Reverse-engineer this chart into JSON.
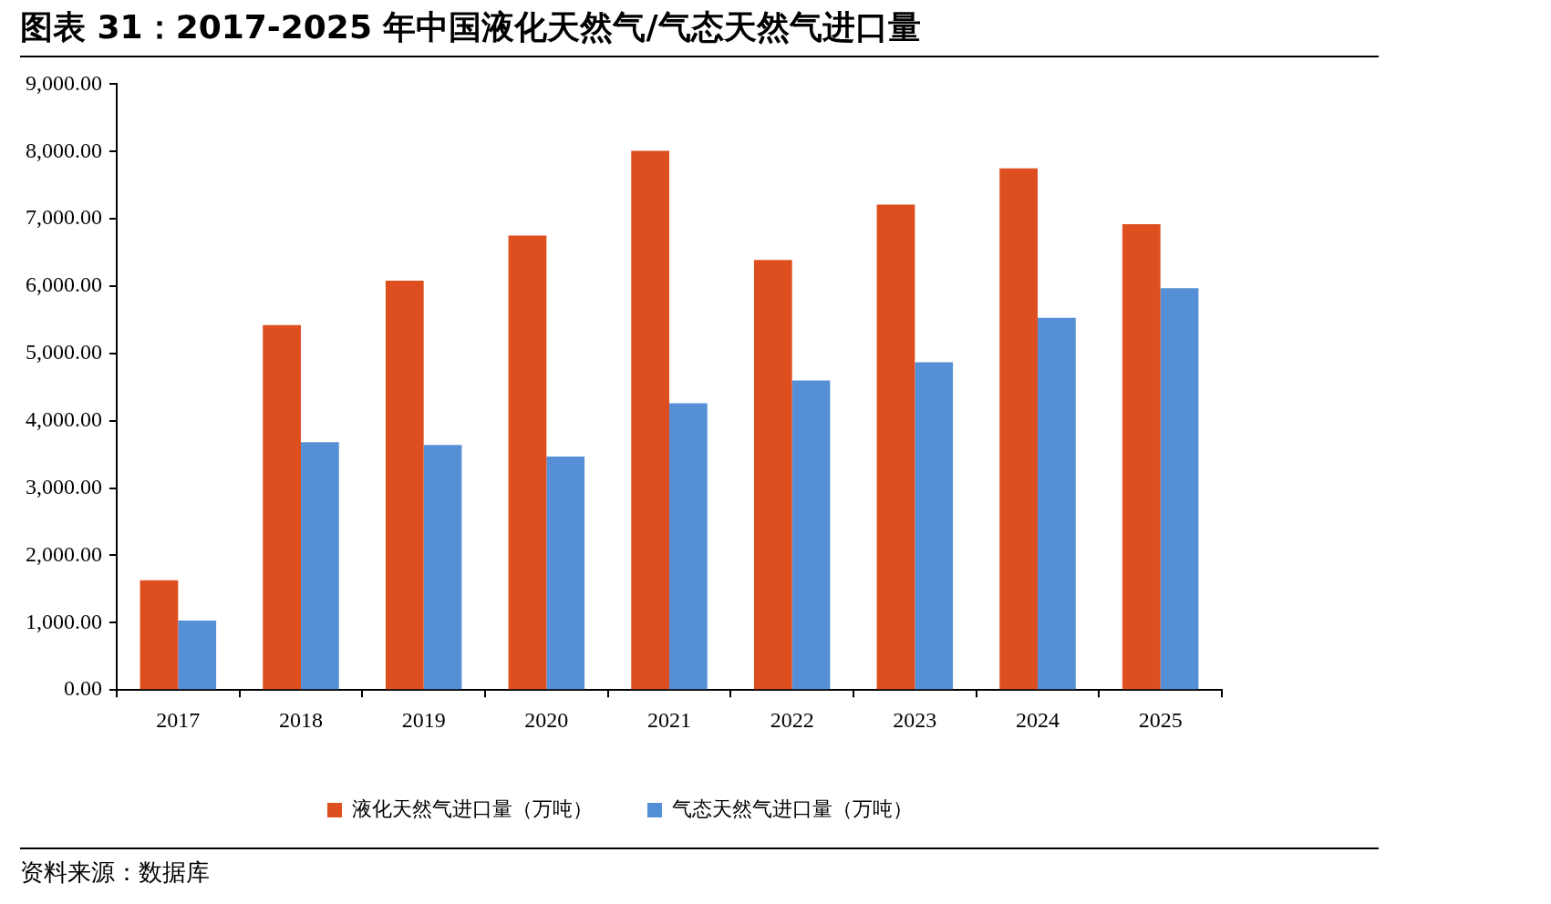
{
  "chart_data": {
    "type": "bar",
    "title": "图表 31：2017-2025 年中国液化天然气/气态天然气进口量",
    "categories": [
      "2017",
      "2018",
      "2019",
      "2020",
      "2021",
      "2022",
      "2023",
      "2024",
      "2025"
    ],
    "series": [
      {
        "name": "液化天然气进口量（万吨）",
        "color": "#dd4f1f",
        "values": [
          1630,
          5420,
          6080,
          6750,
          8010,
          6390,
          7210,
          7750,
          6920
        ]
      },
      {
        "name": "气态天然气进口量（万吨）",
        "color": "#5590d6",
        "values": [
          1030,
          3680,
          3640,
          3470,
          4260,
          4600,
          4870,
          5530,
          5970
        ]
      }
    ],
    "ylim": [
      0,
      9000
    ],
    "yticks": [
      {
        "value": 0,
        "label": "0.00"
      },
      {
        "value": 1000,
        "label": "1,000.00"
      },
      {
        "value": 2000,
        "label": "2,000.00"
      },
      {
        "value": 3000,
        "label": "3,000.00"
      },
      {
        "value": 4000,
        "label": "4,000.00"
      },
      {
        "value": 5000,
        "label": "5,000.00"
      },
      {
        "value": 6000,
        "label": "6,000.00"
      },
      {
        "value": 7000,
        "label": "7,000.00"
      },
      {
        "value": 8000,
        "label": "8,000.00"
      },
      {
        "value": 9000,
        "label": "9,000.00"
      }
    ],
    "grid": false,
    "legend": "bottom",
    "annotations": [
      "资料来源：数据库"
    ]
  }
}
